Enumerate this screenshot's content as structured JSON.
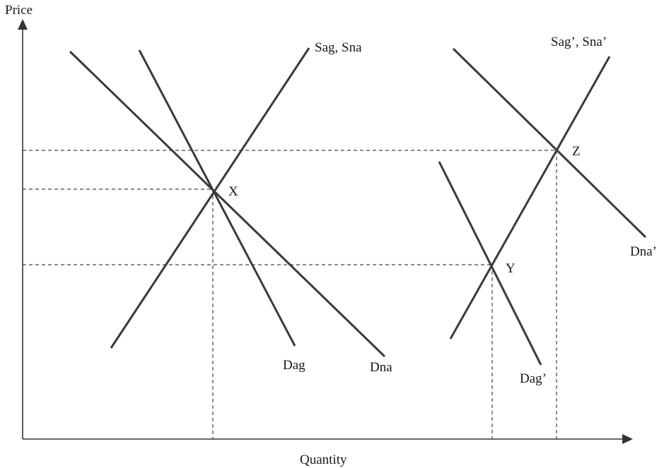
{
  "axes": {
    "y_label": "Price",
    "x_label": "Quantity"
  },
  "curves": {
    "supply": "Sag, Sna",
    "supply_shifted": "Sag’, Sna’",
    "demand_ag": "Dag",
    "demand_na": "Dna",
    "demand_ag_shifted": "Dag’",
    "demand_na_shifted": "Dna’"
  },
  "points": {
    "x": "X",
    "y": "Y",
    "z": "Z"
  }
}
